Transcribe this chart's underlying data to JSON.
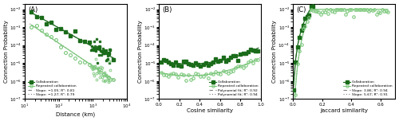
{
  "fig_width": 5.0,
  "fig_height": 1.52,
  "dpi": 100,
  "panel_labels": [
    "(A)",
    "(B)",
    "(C)"
  ],
  "color_collab": "#1a6b1a",
  "color_repeat": "#7dc87d",
  "panel_A": {
    "xlabel": "Distance (km)",
    "ylabel": "Connection Probability",
    "ylim": [
      1e-07,
      0.02
    ],
    "legend": [
      "Collaboration",
      "Repeated collaboration",
      "Slope: −1.05; R²: 0.81",
      "Slope: −1.27; R²: 0.79"
    ]
  },
  "panel_B": {
    "xlabel": "Cosine similarity",
    "ylabel": "Connection Probability",
    "ylim": [
      1e-07,
      0.02
    ],
    "legend": [
      "Collaboration",
      "Repeated collaboration",
      "Polynomial fit; R²: 0.92",
      "Polynomial fit; R²: 0.94"
    ]
  },
  "panel_C": {
    "xlabel": "Jaccard similarity",
    "ylabel": "Connection Probability",
    "ylim": [
      1e-07,
      0.02
    ],
    "legend": [
      "Collaboration",
      "Repeated collaboration",
      "Slope: 3.86; R²: 0.94",
      "Slope: 5.67; R²: 0.91"
    ]
  }
}
